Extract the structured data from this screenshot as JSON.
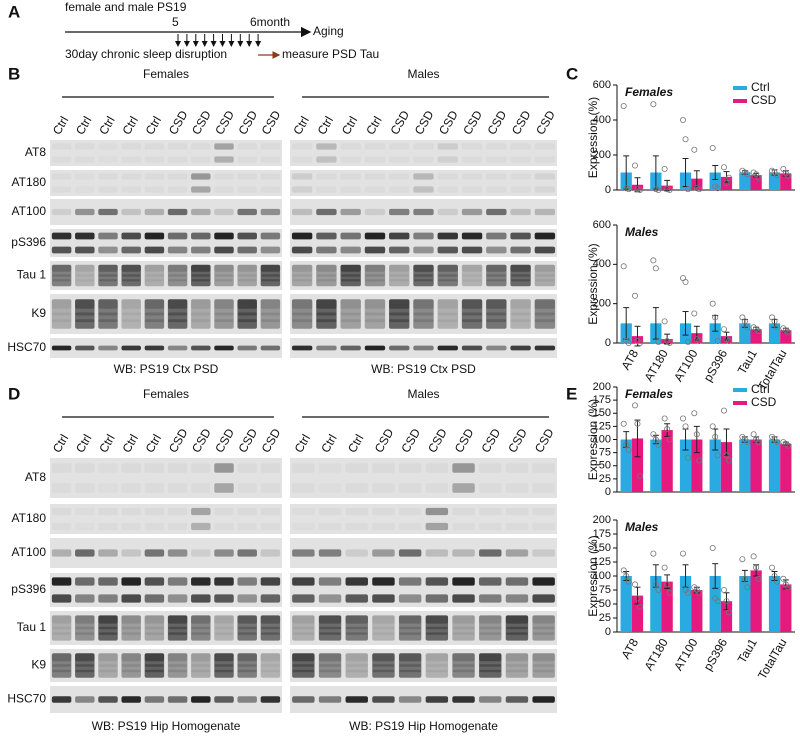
{
  "panel_a": {
    "label": "A",
    "cohort": "female and male PS19",
    "start": "5",
    "end": "6month",
    "axis": "Aging",
    "treatment": "30day chronic sleep disruption",
    "readout": "measure PSD Tau"
  },
  "blots": [
    {
      "label": "B",
      "rows": [
        "AT8",
        "AT180",
        "AT100",
        "pS396",
        "Tau 1",
        "K9",
        "HSC70"
      ],
      "groups": [
        {
          "name": "Females",
          "lanes": [
            "Ctrl",
            "Ctrl",
            "Ctrl",
            "Ctrl",
            "Ctrl",
            "CSD",
            "CSD",
            "CSD",
            "CSD",
            "CSD"
          ],
          "caption": "WB: PS19 Ctx PSD"
        },
        {
          "name": "Males",
          "lanes": [
            "Ctrl",
            "Ctrl",
            "Ctrl",
            "Ctrl",
            "CSD",
            "CSD",
            "CSD",
            "CSD",
            "CSD",
            "CSD",
            "CSD"
          ],
          "caption": "WB: PS19 Ctx PSD"
        }
      ]
    },
    {
      "label": "D",
      "rows": [
        "AT8",
        "AT180",
        "AT100",
        "pS396",
        "Tau 1",
        "K9",
        "HSC70"
      ],
      "groups": [
        {
          "name": "Females",
          "lanes": [
            "Ctrl",
            "Ctrl",
            "Ctrl",
            "Ctrl",
            "Ctrl",
            "CSD",
            "CSD",
            "CSD",
            "CSD",
            "CSD"
          ],
          "caption": "WB: PS19 Hip Homogenate"
        },
        {
          "name": "Males",
          "lanes": [
            "Ctrl",
            "Ctrl",
            "Ctrl",
            "CSD",
            "CSD",
            "CSD",
            "CSD",
            "CSD",
            "CSD",
            "CSD"
          ],
          "caption": "WB: PS19 Hip Homogenate"
        }
      ]
    }
  ],
  "chart_labels": [
    "C",
    "E"
  ],
  "chart_data": [
    {
      "type": "bar",
      "title": "Females",
      "y_label": "Expression (%)",
      "categories": [
        null,
        null,
        null,
        null,
        null,
        null
      ],
      "ylim": [
        0,
        600
      ],
      "yticks": [
        0,
        200,
        400,
        600
      ],
      "legend": "upper right",
      "series": [
        {
          "name": "Ctrl",
          "color": "#29abe2",
          "values": [
            100,
            100,
            100,
            100,
            100,
            100
          ],
          "errors": [
            95,
            95,
            80,
            40,
            10,
            15
          ],
          "points": [
            [
              480,
              10,
              5
            ],
            [
              490,
              5,
              0
            ],
            [
              400,
              290,
              5
            ],
            [
              240,
              20,
              10
            ],
            [
              110,
              100,
              90
            ],
            [
              110,
              100,
              85
            ]
          ]
        },
        {
          "name": "CSD",
          "color": "#e6197f",
          "values": [
            30,
            25,
            65,
            75,
            85,
            95
          ],
          "errors": [
            40,
            30,
            45,
            30,
            10,
            15
          ],
          "points": [
            [
              140,
              5,
              0
            ],
            [
              120,
              5,
              0
            ],
            [
              230,
              10,
              5
            ],
            [
              130,
              40,
              70
            ],
            [
              100,
              90,
              70
            ],
            [
              120,
              95,
              80
            ]
          ]
        }
      ]
    },
    {
      "type": "bar",
      "title": "Males",
      "y_label": "Expression (%)",
      "categories": [
        "AT8",
        "AT180",
        "AT100",
        "pS396",
        "Tau1",
        "TotalTau"
      ],
      "ylim": [
        0,
        600
      ],
      "yticks": [
        0,
        200,
        400,
        600
      ],
      "series": [
        {
          "color": "#29abe2",
          "values": [
            100,
            100,
            100,
            100,
            100,
            100
          ],
          "errors": [
            80,
            80,
            60,
            40,
            20,
            20
          ],
          "points": [
            [
              390,
              10,
              0
            ],
            [
              420,
              380,
              5
            ],
            [
              330,
              310,
              5
            ],
            [
              200,
              130,
              10
            ],
            [
              130,
              110,
              80
            ],
            [
              130,
              110,
              80
            ]
          ]
        },
        {
          "color": "#e6197f",
          "values": [
            35,
            20,
            50,
            35,
            70,
            65
          ],
          "errors": [
            50,
            25,
            35,
            20,
            10,
            10
          ],
          "points": [
            [
              240,
              10,
              0
            ],
            [
              110,
              10,
              0
            ],
            [
              150,
              20,
              10
            ],
            [
              70,
              20,
              10
            ],
            [
              80,
              70,
              60
            ],
            [
              75,
              65,
              55
            ]
          ]
        }
      ]
    },
    {
      "type": "bar",
      "title": "Females",
      "y_label": "Expression (%)",
      "categories": [
        null,
        null,
        null,
        null,
        null,
        null
      ],
      "ylim": [
        0,
        200
      ],
      "yticks": [
        0,
        25,
        50,
        75,
        100,
        125,
        150,
        175,
        200
      ],
      "legend": "upper right",
      "series": [
        {
          "name": "Ctrl",
          "color": "#29abe2",
          "values": [
            100,
            100,
            100,
            100,
            100,
            100
          ],
          "errors": [
            15,
            8,
            20,
            20,
            5,
            5
          ],
          "points": [
            [
              130,
              90,
              80
            ],
            [
              110,
              100,
              90
            ],
            [
              140,
              125,
              65
            ],
            [
              125,
              105,
              70
            ],
            [
              105,
              100,
              95
            ],
            [
              105,
              100,
              95
            ]
          ]
        },
        {
          "name": "CSD",
          "color": "#e6197f",
          "values": [
            102,
            118,
            100,
            95,
            100,
            92
          ],
          "errors": [
            35,
            12,
            25,
            25,
            5,
            3
          ],
          "points": [
            [
              165,
              130,
              30
            ],
            [
              140,
              120,
              100
            ],
            [
              150,
              110,
              60
            ],
            [
              155,
              70,
              60
            ],
            [
              110,
              100,
              95
            ],
            [
              95,
              92,
              88
            ]
          ]
        }
      ]
    },
    {
      "type": "bar",
      "title": "Males",
      "y_label": "Expression (%)",
      "categories": [
        "AT8",
        "AT180",
        "AT100",
        "pS396",
        "Tau1",
        "TotalTau"
      ],
      "ylim": [
        0,
        200
      ],
      "yticks": [
        0,
        25,
        50,
        75,
        100,
        125,
        150,
        175,
        200
      ],
      "series": [
        {
          "color": "#29abe2",
          "values": [
            100,
            100,
            100,
            100,
            100,
            100
          ],
          "errors": [
            8,
            20,
            20,
            22,
            10,
            8
          ],
          "points": [
            [
              110,
              100,
              90
            ],
            [
              140,
              85,
              75
            ],
            [
              140,
              75,
              70
            ],
            [
              150,
              60,
              55
            ],
            [
              130,
              95,
              80
            ],
            [
              115,
              100,
              90
            ]
          ]
        },
        {
          "color": "#e6197f",
          "values": [
            65,
            90,
            75,
            55,
            110,
            85
          ],
          "errors": [
            15,
            12,
            5,
            15,
            10,
            8
          ],
          "points": [
            [
              85,
              60,
              45
            ],
            [
              115,
              85,
              70
            ],
            [
              80,
              75,
              70
            ],
            [
              75,
              55,
              35
            ],
            [
              135,
              115,
              95
            ],
            [
              95,
              85,
              80
            ]
          ]
        }
      ]
    }
  ]
}
